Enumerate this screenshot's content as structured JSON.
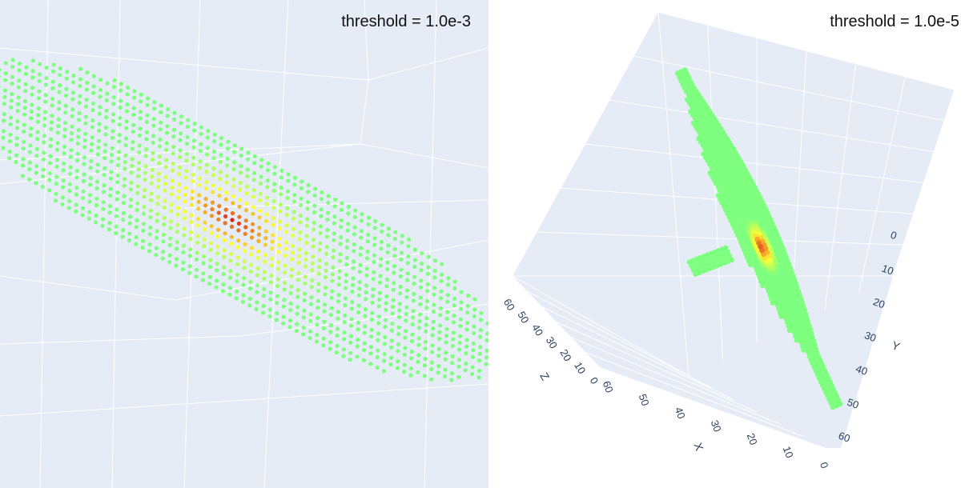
{
  "colors": {
    "plot_bg": "#e5ecf6",
    "grid": "#ffffff",
    "axis_text": "#2a3f5f",
    "point_low": "#7fff7f",
    "point_mid": "#ffff33",
    "point_high": "#e0201a"
  },
  "chart_data": [
    {
      "type": "scatter3d",
      "annotation": "threshold = 1.0e-3",
      "axes_visible": false,
      "grid": true,
      "description_note": "zoomed-in view of ellipsoidal point cloud with a dense core"
    },
    {
      "type": "scatter3d",
      "annotation": "threshold = 1.0e-5",
      "grid": true,
      "x_axis": {
        "label": "X",
        "ticks": [
          "60",
          "50",
          "40",
          "30",
          "20",
          "10",
          "0"
        ],
        "range": [
          0,
          60
        ]
      },
      "y_axis": {
        "label": "Y",
        "ticks": [
          "0",
          "10",
          "20",
          "30",
          "40",
          "50",
          "60"
        ],
        "range": [
          0,
          60
        ]
      },
      "z_axis": {
        "label": "Z",
        "ticks": [
          "0",
          "10",
          "20",
          "30",
          "40",
          "50",
          "60"
        ],
        "range": [
          0,
          60
        ]
      }
    }
  ]
}
